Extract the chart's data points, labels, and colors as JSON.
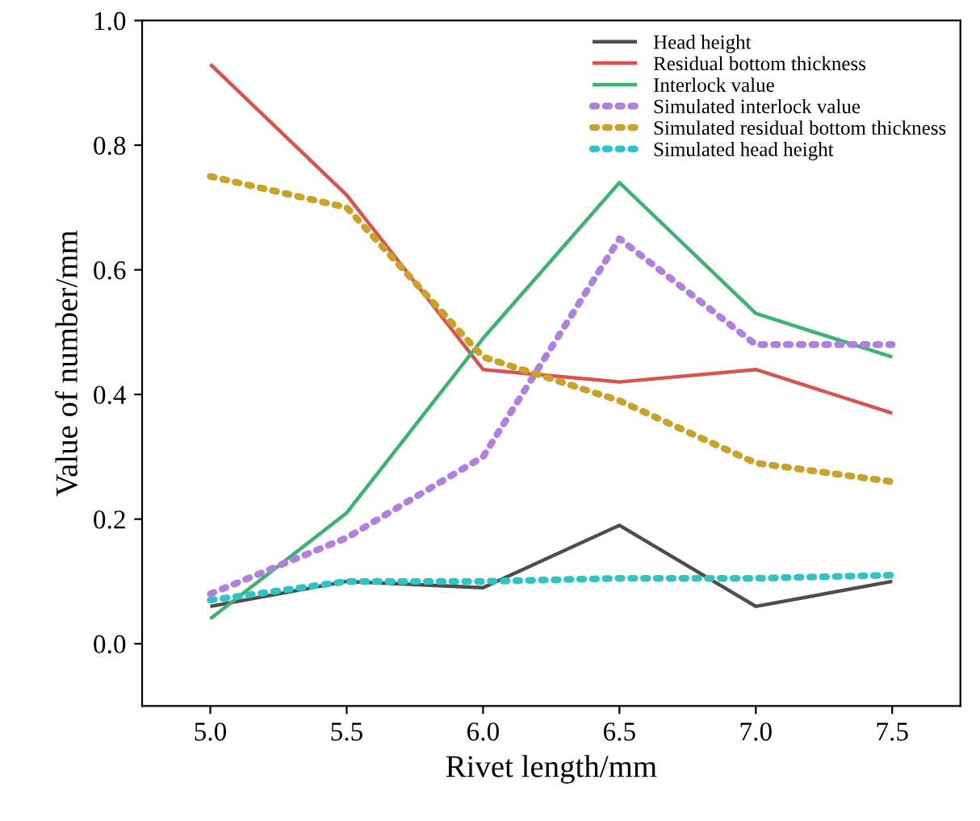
{
  "chart_data": {
    "type": "line",
    "xlabel": "Rivet length/mm",
    "ylabel": "Value of number/mm",
    "x": [
      5.0,
      5.5,
      6.0,
      6.5,
      7.0,
      7.5
    ],
    "xlim": [
      4.75,
      7.75
    ],
    "xticks": [
      {
        "value": 5.0,
        "label": "5.0"
      },
      {
        "value": 5.5,
        "label": "5.5"
      },
      {
        "value": 6.0,
        "label": "6.0"
      },
      {
        "value": 6.5,
        "label": "6.5"
      },
      {
        "value": 7.0,
        "label": "7.0"
      },
      {
        "value": 7.5,
        "label": "7.5"
      }
    ],
    "ylim": [
      -0.1,
      1.0
    ],
    "yticks": [
      {
        "value": 0.0,
        "label": "0.0"
      },
      {
        "value": 0.2,
        "label": "0.2"
      },
      {
        "value": 0.4,
        "label": "0.4"
      },
      {
        "value": 0.6,
        "label": "0.6"
      },
      {
        "value": 0.8,
        "label": "0.8"
      },
      {
        "value": 1.0,
        "label": "1.0"
      }
    ],
    "grid": false,
    "legend": "top right",
    "series": [
      {
        "name": "Head height",
        "color": "#4d4d4d",
        "line_style": "solid",
        "values": [
          0.06,
          0.1,
          0.09,
          0.19,
          0.06,
          0.1
        ]
      },
      {
        "name": "Residual bottom thickness",
        "color": "#d9534f",
        "line_style": "solid",
        "values": [
          0.93,
          0.72,
          0.44,
          0.42,
          0.44,
          0.37
        ]
      },
      {
        "name": "Interlock value",
        "color": "#3cb371",
        "line_style": "solid",
        "values": [
          0.04,
          0.21,
          0.49,
          0.74,
          0.53,
          0.46
        ]
      },
      {
        "name": "Simulated interlock value",
        "color": "#b07fe0",
        "line_style": "dotted",
        "values": [
          0.08,
          0.17,
          0.3,
          0.65,
          0.48,
          0.48
        ]
      },
      {
        "name": "Simulated residual bottom thickness",
        "color": "#c9a227",
        "line_style": "dotted",
        "values": [
          0.75,
          0.7,
          0.46,
          0.39,
          0.29,
          0.26
        ]
      },
      {
        "name": "Simulated head height",
        "color": "#2ec4c4",
        "line_style": "dotted",
        "values": [
          0.07,
          0.1,
          0.1,
          0.105,
          0.105,
          0.11
        ]
      }
    ]
  }
}
